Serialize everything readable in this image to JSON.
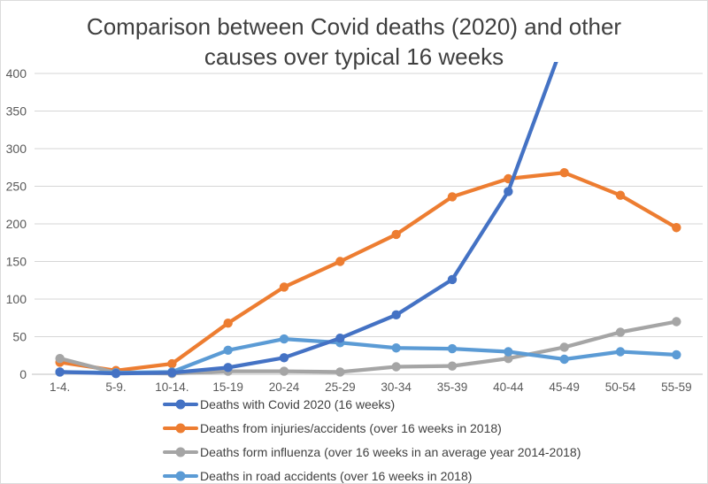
{
  "chart_data": {
    "type": "line",
    "title": "Comparison between Covid deaths (2020) and other causes over typical 16 weeks",
    "categories": [
      "1-4.",
      "5-9.",
      "10-14.",
      "15-19",
      "20-24",
      "25-29",
      "30-34",
      "35-39",
      "40-44",
      "45-49",
      "50-54",
      "55-59"
    ],
    "series": [
      {
        "key": "covid",
        "name": "Deaths with Covid 2020 (16 weeks)",
        "color": "#4472C4",
        "values": [
          3,
          1,
          2,
          9,
          22,
          48,
          79,
          126,
          243,
          445,
          null,
          null
        ],
        "note": "line rises off the top of the chart (above y-axis max 400) between 40-44 and 45-49"
      },
      {
        "key": "injuries",
        "name": "Deaths from injuries/accidents (over 16 weeks in 2018)",
        "color": "#ED7D31",
        "values": [
          16,
          5,
          14,
          68,
          116,
          150,
          186,
          236,
          260,
          268,
          238,
          195
        ]
      },
      {
        "key": "influenza",
        "name": "Deaths form influenza (over 16 weeks in an average year 2014-2018)",
        "color": "#A5A5A5",
        "values": [
          21,
          2,
          1,
          4,
          4,
          3,
          10,
          11,
          21,
          36,
          56,
          70
        ]
      },
      {
        "key": "road",
        "name": "Deaths in road accidents (over 16 weeks in 2018)",
        "color": "#5B9BD5",
        "values": [
          3,
          2,
          3,
          32,
          47,
          42,
          35,
          34,
          30,
          20,
          30,
          26
        ]
      }
    ],
    "y_axis": {
      "min": 0,
      "max": 400,
      "step": 50,
      "tick_labels": [
        "0",
        "50",
        "100",
        "150",
        "200",
        "250",
        "300",
        "350",
        "400"
      ]
    },
    "x_axis": {
      "tick_labels": [
        "1-4.",
        "5-9.",
        "10-14.",
        "15-19",
        "20-24",
        "25-29",
        "30-34",
        "35-39",
        "40-44",
        "45-49",
        "50-54",
        "55-59"
      ]
    },
    "grid": true,
    "legend_position": "bottom-left-stacked",
    "colors": {
      "grid_line": "#D6D6D6",
      "axis_line": "#BFBFBF",
      "axis_label": "#595959",
      "title_text": "#3F3F3F",
      "legend_text": "#404040"
    }
  }
}
